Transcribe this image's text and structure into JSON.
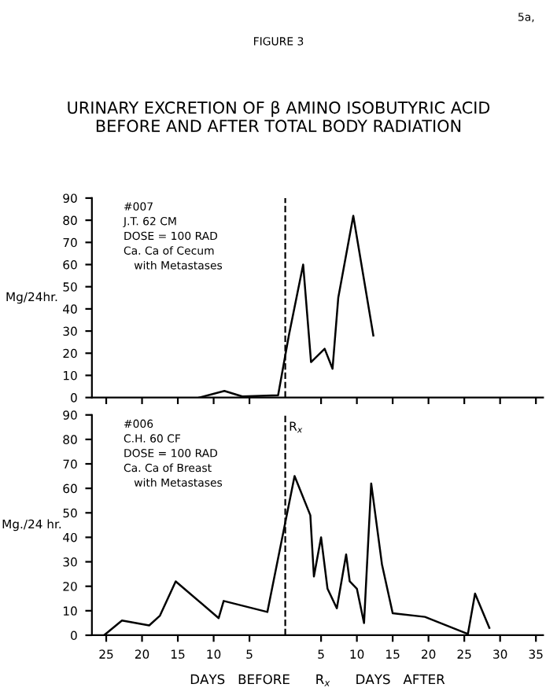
{
  "chart_data": [
    {
      "type": "line",
      "title": "URINARY EXCRETION OF β AMINO ISOBUTYRIC ACID\nBEFORE AND AFTER TOTAL BODY RADIATION",
      "ylabel": "Mg/24hr.",
      "annotations": [
        "FIGURE 3",
        "5a,",
        "#007\nJ.T. 62 CM\nDOSE = 100 RAD\nCa. Ca of Cecum\n   with Metastases"
      ],
      "series": [
        {
          "color": "#000000",
          "x": [
            -12,
            -8.5,
            -6,
            -1,
            0.5,
            2.5,
            3.6,
            5.5,
            6.6,
            7.4,
            9.5,
            12.3
          ],
          "values": [
            0,
            3,
            0.5,
            1,
            28,
            60,
            16,
            22,
            13,
            45,
            82,
            28
          ]
        }
      ],
      "xlim": [
        -27,
        36
      ],
      "ylim": [
        0,
        90
      ],
      "xticks": [
        {
          "value": -25,
          "label": null
        },
        {
          "value": -20,
          "label": null
        },
        {
          "value": -15,
          "label": null
        },
        {
          "value": -10,
          "label": null
        },
        {
          "value": -5,
          "label": null
        },
        {
          "value": 5,
          "label": null
        },
        {
          "value": 10,
          "label": null
        },
        {
          "value": 15,
          "label": null
        },
        {
          "value": 20,
          "label": null
        },
        {
          "value": 25,
          "label": null
        },
        {
          "value": 30,
          "label": null
        },
        {
          "value": 35,
          "label": null
        }
      ],
      "yticks": [
        0,
        10,
        20,
        30,
        40,
        50,
        60,
        70,
        80,
        90
      ],
      "ref_lines": [
        {
          "axis": "x",
          "value": 0,
          "line_style": "dashed"
        }
      ],
      "tick_labels": "y",
      "grid": false,
      "legend": false,
      "marker": "none",
      "line_style": "solid"
    },
    {
      "type": "line",
      "ylabel": "Mg./24 hr.",
      "xlabel": "DAYS   BEFORE      R$_{x}$      DAYS   AFTER",
      "annotations": [
        "#006\nC.H. 60 CF\nDOSE = 100 RAD\nCa. Ca of Breast\n   with Metastases"
      ],
      "series": [
        {
          "color": "#000000",
          "x": [
            -25.3,
            -22.8,
            -19,
            -17.5,
            -15.3,
            -9.3,
            -8.6,
            -2.5,
            1.3,
            3.5,
            4,
            5,
            5.9,
            7.2,
            8.5,
            9,
            10,
            11,
            12,
            13.5,
            15,
            19.5,
            25.5,
            26.5,
            28.5
          ],
          "values": [
            0,
            6,
            4,
            8,
            22,
            7,
            14,
            9.5,
            65,
            49,
            24,
            40,
            19,
            11,
            33,
            22,
            19,
            5,
            62,
            29,
            9,
            7.5,
            0.5,
            17,
            3
          ]
        }
      ],
      "xlim": [
        -27,
        36
      ],
      "ylim": [
        0,
        90
      ],
      "xticks": [
        {
          "value": -25,
          "label": "25"
        },
        {
          "value": -20,
          "label": "20"
        },
        {
          "value": -15,
          "label": "15"
        },
        {
          "value": -10,
          "label": "10"
        },
        {
          "value": -5,
          "label": "5"
        },
        {
          "value": 5,
          "label": "5"
        },
        {
          "value": 10,
          "label": "10"
        },
        {
          "value": 15,
          "label": "15"
        },
        {
          "value": 20,
          "label": "20"
        },
        {
          "value": 25,
          "label": "25"
        },
        {
          "value": 30,
          "label": "30"
        },
        {
          "value": 35,
          "label": "35"
        }
      ],
      "yticks": [
        0,
        10,
        20,
        30,
        40,
        50,
        60,
        70,
        80,
        90
      ],
      "ref_lines": [
        {
          "axis": "x",
          "value": 0,
          "line_style": "dashed",
          "label": "R$_{x}$"
        }
      ],
      "grid": false,
      "legend": false,
      "marker": "none",
      "line_style": "solid"
    }
  ]
}
